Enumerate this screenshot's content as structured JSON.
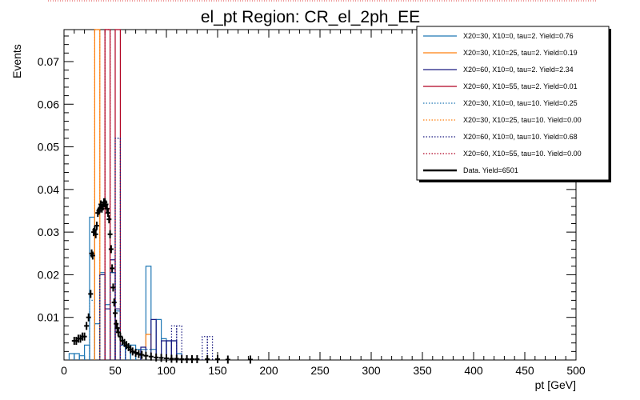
{
  "chart_data": {
    "type": "histogram",
    "title": "el_pt Region: CR_el_2ph_EE",
    "xlabel": "pt [GeV]",
    "ylabel": "Events",
    "xlim": [
      0,
      500
    ],
    "ylim": [
      0,
      0.0775
    ],
    "bin_width": 5,
    "x_ticks": [
      0,
      50,
      100,
      150,
      200,
      250,
      300,
      350,
      400,
      450,
      500
    ],
    "y_ticks": [
      0.01,
      0.02,
      0.03,
      0.04,
      0.05,
      0.06,
      0.07
    ],
    "y_tick_labels": [
      "0.01",
      "0.02",
      "0.03",
      "0.04",
      "0.05",
      "0.06",
      "0.07"
    ],
    "series": [
      {
        "name": "X20=30, X10=0, tau=2. Yield=0.76",
        "color": "#1f77b4",
        "style": "solid",
        "bins": [
          [
            5,
            10,
            0.0015
          ],
          [
            10,
            15,
            0.0015
          ],
          [
            15,
            20,
            0.001
          ],
          [
            20,
            25,
            0.0035
          ],
          [
            25,
            30,
            0.0335
          ],
          [
            30,
            35,
            0.0085
          ],
          [
            35,
            40,
            0.0205
          ],
          [
            40,
            45,
            0.013
          ],
          [
            45,
            50,
            0.0205
          ],
          [
            50,
            55,
            0.0115
          ],
          [
            55,
            60,
            0.0035
          ],
          [
            60,
            65,
            0.0035
          ],
          [
            65,
            70,
            0.0035
          ],
          [
            70,
            75,
            0.0025
          ],
          [
            75,
            80,
            0.0025
          ],
          [
            80,
            85,
            0.022
          ],
          [
            85,
            90,
            0.0025
          ],
          [
            90,
            95,
            0.0095
          ],
          [
            95,
            100,
            0.005
          ],
          [
            100,
            105,
            0.0045
          ],
          [
            105,
            110,
            0.0045
          ],
          [
            110,
            115,
            0.0015
          ]
        ]
      },
      {
        "name": "X20=30, X10=25, tau=2. Yield=0.19",
        "color": "#ff7f0e",
        "style": "solid",
        "bins": [
          [
            30,
            35,
            0.0775
          ],
          [
            80,
            85,
            0.006
          ]
        ]
      },
      {
        "name": "X20=60, X10=0, tau=2. Yield=2.34",
        "color": "#1a1a80",
        "style": "solid",
        "bins": [
          [
            35,
            40,
            0.02
          ],
          [
            40,
            45,
            0.012
          ],
          [
            45,
            50,
            0.0235
          ],
          [
            50,
            55,
            0.012
          ],
          [
            55,
            60,
            0.0035
          ],
          [
            75,
            80,
            0.003
          ],
          [
            85,
            90,
            0.0095
          ],
          [
            95,
            100,
            0.0045
          ],
          [
            100,
            105,
            0.0045
          ],
          [
            105,
            110,
            0.0045
          ]
        ]
      },
      {
        "name": "X20=60, X10=55, tau=2. Yield=0.01",
        "color": "#b00020",
        "style": "solid",
        "bins": [
          [
            40,
            45,
            0.0775
          ],
          [
            50,
            55,
            0.0775
          ]
        ]
      },
      {
        "name": "X20=30, X10=0, tau=10. Yield=0.25",
        "color": "#1f77b4",
        "style": "dotted",
        "bins": [
          [
            25,
            30,
            0.014
          ],
          [
            30,
            35,
            0.0085
          ],
          [
            45,
            50,
            0.0205
          ],
          [
            50,
            55,
            0.052
          ],
          [
            55,
            60,
            0.0035
          ],
          [
            80,
            85,
            0.0025
          ]
        ]
      },
      {
        "name": "X20=30, X10=25, tau=10. Yield=0.00",
        "color": "#ff7f0e",
        "style": "dotted",
        "bins": [
          [
            30,
            35,
            0.0775
          ]
        ]
      },
      {
        "name": "X20=60, X10=0, tau=10. Yield=0.68",
        "color": "#1a1a80",
        "style": "dotted",
        "bins": [
          [
            35,
            40,
            0.02
          ],
          [
            45,
            50,
            0.0205
          ],
          [
            50,
            55,
            0.052
          ],
          [
            105,
            110,
            0.008
          ],
          [
            110,
            115,
            0.008
          ],
          [
            135,
            140,
            0.0055
          ],
          [
            140,
            145,
            0.0055
          ]
        ]
      },
      {
        "name": "X20=60, X10=55, tau=10. Yield=0.00",
        "color": "#b00020",
        "style": "dotted",
        "bins": [
          [
            40,
            45,
            0.0775
          ]
        ]
      }
    ],
    "data_series": {
      "name": "Data. Yield=6501",
      "color": "#000000",
      "points": [
        [
          10,
          0.0045
        ],
        [
          12,
          0.0045
        ],
        [
          14,
          0.005
        ],
        [
          16,
          0.005
        ],
        [
          18,
          0.0055
        ],
        [
          20,
          0.0055
        ],
        [
          22,
          0.008
        ],
        [
          24,
          0.01
        ],
        [
          26,
          0.0155
        ],
        [
          27,
          0.025
        ],
        [
          28,
          0.0245
        ],
        [
          29,
          0.03
        ],
        [
          30,
          0.0305
        ],
        [
          31,
          0.0295
        ],
        [
          32,
          0.0315
        ],
        [
          33,
          0.0345
        ],
        [
          34,
          0.035
        ],
        [
          35,
          0.0355
        ],
        [
          36,
          0.0365
        ],
        [
          37,
          0.0355
        ],
        [
          38,
          0.036
        ],
        [
          39,
          0.037
        ],
        [
          40,
          0.037
        ],
        [
          41,
          0.0365
        ],
        [
          42,
          0.0355
        ],
        [
          43,
          0.0345
        ],
        [
          44,
          0.033
        ],
        [
          45,
          0.0295
        ],
        [
          46,
          0.026
        ],
        [
          47,
          0.0215
        ],
        [
          48,
          0.017
        ],
        [
          49,
          0.0135
        ],
        [
          50,
          0.011
        ],
        [
          51,
          0.0085
        ],
        [
          52,
          0.0075
        ],
        [
          53,
          0.0065
        ],
        [
          55,
          0.0055
        ],
        [
          57,
          0.0045
        ],
        [
          59,
          0.004
        ],
        [
          61,
          0.0035
        ],
        [
          63,
          0.003
        ],
        [
          65,
          0.0025
        ],
        [
          67,
          0.002
        ],
        [
          70,
          0.0017
        ],
        [
          73,
          0.0014
        ],
        [
          76,
          0.0012
        ],
        [
          80,
          0.001
        ],
        [
          85,
          0.0008
        ],
        [
          90,
          0.0006
        ],
        [
          95,
          0.0005
        ],
        [
          100,
          0.0004
        ],
        [
          105,
          0.0003
        ],
        [
          110,
          0.0003
        ],
        [
          115,
          0.0002
        ],
        [
          120,
          0.0002
        ],
        [
          125,
          0.0002
        ],
        [
          130,
          0.0002
        ],
        [
          140,
          0.0002
        ],
        [
          150,
          0.0002
        ],
        [
          160,
          0.0001
        ],
        [
          182,
          0.0001
        ]
      ]
    },
    "legend_placement": "top-right"
  }
}
